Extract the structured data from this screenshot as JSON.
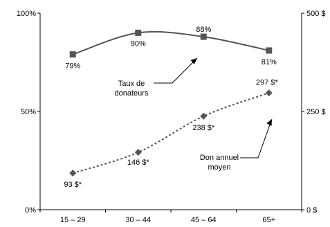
{
  "chart_data": {
    "type": "line",
    "categories": [
      "15 – 29",
      "30 – 44",
      "45 – 64",
      "65+"
    ],
    "left_axis": {
      "ylim": [
        0,
        100
      ],
      "ticks": [
        {
          "value": 0,
          "label": "0%"
        },
        {
          "value": 50,
          "label": "50%"
        },
        {
          "value": 100,
          "label": "100%"
        }
      ]
    },
    "right_axis": {
      "ylim": [
        0,
        500
      ],
      "ticks": [
        {
          "value": 0,
          "label": "0 $"
        },
        {
          "value": 250,
          "label": "250 $"
        },
        {
          "value": 500,
          "label": "500 $"
        }
      ]
    },
    "series": [
      {
        "name": "Taux de donateurs",
        "label_lines": [
          "Taux de",
          "donateurs"
        ],
        "axis": "left",
        "values": [
          79,
          90,
          88,
          81
        ],
        "data_labels": [
          "79%",
          "90%",
          "88%",
          "81%"
        ],
        "marker": "square",
        "line_style": "solid",
        "color": "#555555"
      },
      {
        "name": "Don annuel moyen",
        "label_lines": [
          "Don annuel",
          "moyen"
        ],
        "axis": "right",
        "values": [
          93,
          146,
          238,
          297
        ],
        "data_labels": [
          "93 $*",
          "146 $*",
          "238 $*",
          "297 $*"
        ],
        "marker": "diamond",
        "line_style": "dotted",
        "color": "#555555"
      }
    ]
  }
}
